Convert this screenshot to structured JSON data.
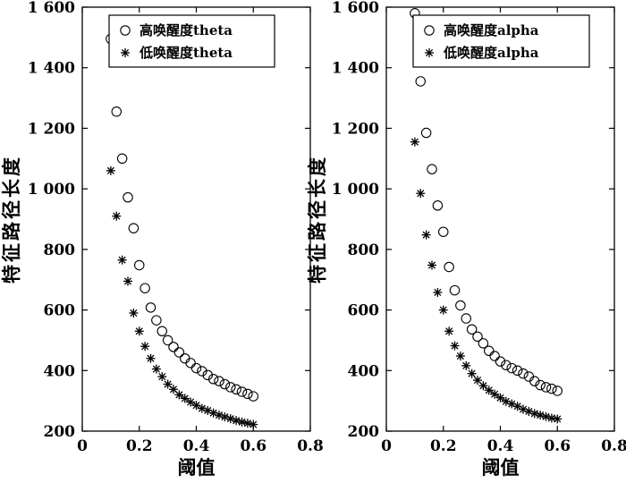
{
  "chart_data": [
    {
      "type": "scatter",
      "title": "",
      "xlabel": "阈值",
      "ylabel": "特征路径长度",
      "xlim": [
        0,
        0.8
      ],
      "ylim": [
        200,
        1600
      ],
      "xticks": [
        0,
        0.2,
        0.4,
        0.6,
        0.8
      ],
      "xtick_labels": [
        "0",
        "0.2",
        "0.4",
        "0.6",
        "0.8"
      ],
      "yticks": [
        200,
        400,
        600,
        800,
        1000,
        1200,
        1400,
        1600
      ],
      "ytick_labels": [
        "200",
        "400",
        "600",
        "800",
        "1 000",
        "1 200",
        "1 400",
        "1 600"
      ],
      "grid": false,
      "legend_position": "top-right",
      "series": [
        {
          "name": "高唤醒度theta",
          "marker": "circle",
          "x": [
            0.1,
            0.12,
            0.14,
            0.16,
            0.18,
            0.2,
            0.22,
            0.24,
            0.26,
            0.28,
            0.3,
            0.32,
            0.34,
            0.36,
            0.38,
            0.4,
            0.42,
            0.44,
            0.46,
            0.48,
            0.5,
            0.52,
            0.54,
            0.56,
            0.58,
            0.6
          ],
          "y": [
            1495,
            1255,
            1100,
            972,
            870,
            748,
            672,
            608,
            566,
            530,
            500,
            478,
            460,
            440,
            425,
            408,
            398,
            385,
            372,
            365,
            355,
            345,
            338,
            330,
            323,
            315
          ]
        },
        {
          "name": "低唤醒度theta",
          "marker": "star",
          "x": [
            0.1,
            0.12,
            0.14,
            0.16,
            0.18,
            0.2,
            0.22,
            0.24,
            0.26,
            0.28,
            0.3,
            0.32,
            0.34,
            0.36,
            0.38,
            0.4,
            0.42,
            0.44,
            0.46,
            0.48,
            0.5,
            0.52,
            0.54,
            0.56,
            0.58,
            0.6
          ],
          "y": [
            1060,
            910,
            765,
            695,
            590,
            530,
            480,
            440,
            405,
            380,
            355,
            338,
            320,
            308,
            296,
            285,
            275,
            268,
            260,
            253,
            247,
            241,
            235,
            230,
            226,
            222
          ]
        }
      ]
    },
    {
      "type": "scatter",
      "title": "",
      "xlabel": "阈值",
      "ylabel": "特征路径长度",
      "xlim": [
        0,
        0.8
      ],
      "ylim": [
        200,
        1600
      ],
      "xticks": [
        0,
        0.2,
        0.4,
        0.6,
        0.8
      ],
      "xtick_labels": [
        "0",
        "0.2",
        "0.4",
        "0.6",
        "0.8"
      ],
      "yticks": [
        200,
        400,
        600,
        800,
        1000,
        1200,
        1400,
        1600
      ],
      "ytick_labels": [
        "200",
        "400",
        "600",
        "800",
        "1 000",
        "1 200",
        "1 400",
        "1 600"
      ],
      "grid": false,
      "legend_position": "top-right",
      "series": [
        {
          "name": "高唤醒度alpha",
          "marker": "circle",
          "x": [
            0.1,
            0.12,
            0.14,
            0.16,
            0.18,
            0.2,
            0.22,
            0.24,
            0.26,
            0.28,
            0.3,
            0.32,
            0.34,
            0.36,
            0.38,
            0.4,
            0.42,
            0.44,
            0.46,
            0.48,
            0.5,
            0.52,
            0.54,
            0.56,
            0.58,
            0.6
          ],
          "y": [
            1580,
            1355,
            1185,
            1065,
            945,
            858,
            742,
            665,
            615,
            572,
            536,
            512,
            490,
            465,
            448,
            430,
            418,
            408,
            400,
            390,
            380,
            365,
            352,
            345,
            340,
            333
          ]
        },
        {
          "name": "低唤醒度alpha",
          "marker": "star",
          "x": [
            0.1,
            0.12,
            0.14,
            0.16,
            0.18,
            0.2,
            0.22,
            0.24,
            0.26,
            0.28,
            0.3,
            0.32,
            0.34,
            0.36,
            0.38,
            0.4,
            0.42,
            0.44,
            0.46,
            0.48,
            0.5,
            0.52,
            0.54,
            0.56,
            0.58,
            0.6
          ],
          "y": [
            1155,
            985,
            848,
            748,
            658,
            600,
            530,
            482,
            448,
            416,
            390,
            368,
            350,
            335,
            322,
            310,
            298,
            290,
            282,
            272,
            265,
            258,
            253,
            248,
            243,
            240
          ]
        }
      ]
    }
  ]
}
